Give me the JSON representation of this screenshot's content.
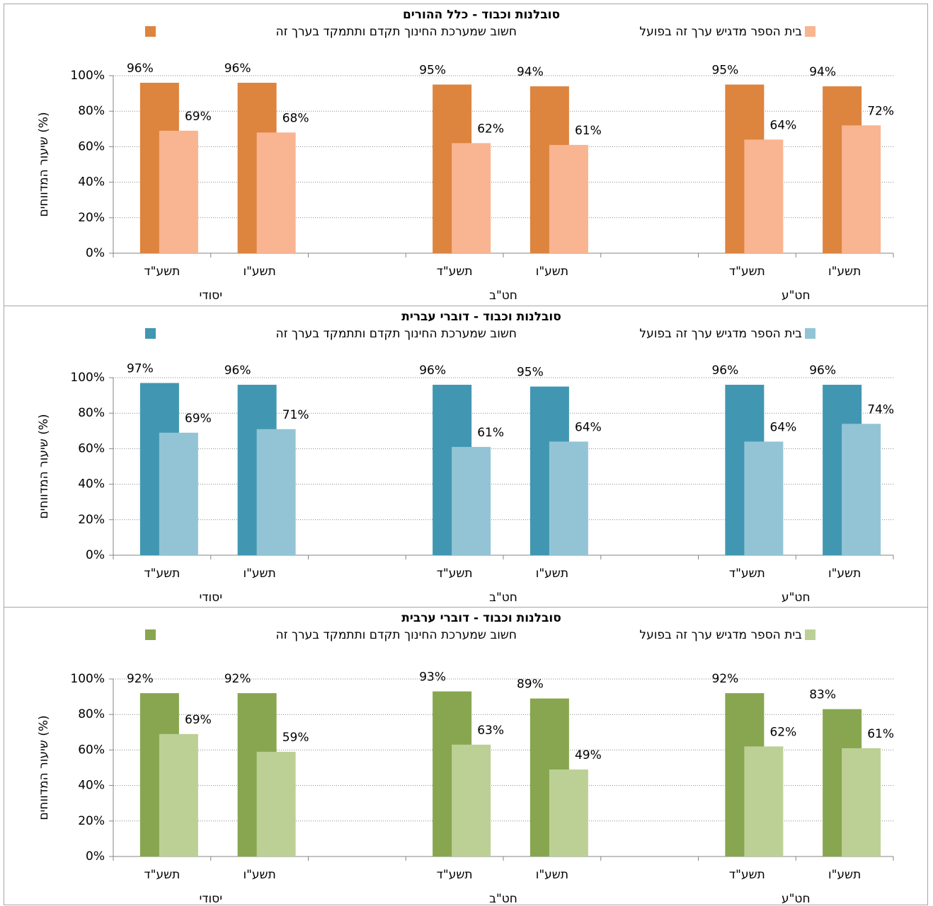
{
  "chart_data": [
    {
      "type": "bar",
      "title": "סובלנות וכבוד - כלל ההורים",
      "y_label": "שיעור המדווחים (%)",
      "categories": [
        "תשע\"ד",
        "תשע\"ו",
        null,
        "תשע\"ד",
        "תשע\"ו",
        null,
        "תשע\"ד",
        "תשע\"ו"
      ],
      "groups": [
        "יסודי",
        "חט\"ב",
        "חט\"ע"
      ],
      "series": [
        {
          "name": "חשוב שמערכת החינוך תקדם ותתמקד בערך זה",
          "color": "#dd843f",
          "values": [
            96,
            96,
            null,
            95,
            94,
            null,
            95,
            94
          ],
          "value_labels": [
            "96%",
            "96%",
            null,
            "95%",
            "94%",
            null,
            "95%",
            "94%"
          ]
        },
        {
          "name": "בית הספר מדגיש ערך זה בפועל",
          "color": "#f9b491",
          "values": [
            69,
            68,
            null,
            62,
            61,
            null,
            64,
            72
          ],
          "value_labels": [
            "69%",
            "68%",
            null,
            "62%",
            "61%",
            null,
            "64%",
            "72%"
          ]
        }
      ],
      "ylim": [
        0,
        100
      ],
      "yticks": [
        {
          "value": 0,
          "label": "0%"
        },
        {
          "value": 20,
          "label": "20%"
        },
        {
          "value": 40,
          "label": "40%"
        },
        {
          "value": 60,
          "label": "60%"
        },
        {
          "value": 80,
          "label": "80%"
        },
        {
          "value": 100,
          "label": "100%"
        }
      ],
      "grid": true
    },
    {
      "type": "bar",
      "title": "סובלנות וכבוד - דוברי עברית",
      "y_label": "שיעור המדווחים (%)",
      "categories": [
        "תשע\"ד",
        "תשע\"ו",
        null,
        "תשע\"ד",
        "תשע\"ו",
        null,
        "תשע\"ד",
        "תשע\"ו"
      ],
      "groups": [
        "יסודי",
        "חט\"ב",
        "חט\"ע"
      ],
      "series": [
        {
          "name": "חשוב שמערכת החינוך תקדם ותתמקד בערך זה",
          "color": "#4197b1",
          "values": [
            97,
            96,
            null,
            96,
            95,
            null,
            96,
            96
          ],
          "value_labels": [
            "97%",
            "96%",
            null,
            "96%",
            "95%",
            null,
            "96%",
            "96%"
          ]
        },
        {
          "name": "בית הספר מדגיש ערך זה בפועל",
          "color": "#93c4d6",
          "values": [
            69,
            71,
            null,
            61,
            64,
            null,
            64,
            74
          ],
          "value_labels": [
            "69%",
            "71%",
            null,
            "61%",
            "64%",
            null,
            "64%",
            "74%"
          ]
        }
      ],
      "ylim": [
        0,
        100
      ],
      "yticks": [
        {
          "value": 0,
          "label": "0%"
        },
        {
          "value": 20,
          "label": "20%"
        },
        {
          "value": 40,
          "label": "40%"
        },
        {
          "value": 60,
          "label": "60%"
        },
        {
          "value": 80,
          "label": "80%"
        },
        {
          "value": 100,
          "label": "100%"
        }
      ],
      "grid": true
    },
    {
      "type": "bar",
      "title": "סובלנות וכבוד - דוברי ערבית",
      "y_label": "שיעור המדווחים (%)",
      "categories": [
        "תשע\"ד",
        "תשע\"ו",
        null,
        "תשע\"ד",
        "תשע\"ו",
        null,
        "תשע\"ד",
        "תשע\"ו"
      ],
      "groups": [
        "יסודי",
        "חט\"ב",
        "חט\"ע"
      ],
      "series": [
        {
          "name": "חשוב שמערכת החינוך תקדם ותתמקד בערך זה",
          "color": "#87a64f",
          "values": [
            92,
            92,
            null,
            93,
            89,
            null,
            92,
            83
          ],
          "value_labels": [
            "92%",
            "92%",
            null,
            "93%",
            "89%",
            null,
            "92%",
            "83%"
          ]
        },
        {
          "name": "בית הספר מדגיש ערך זה בפועל",
          "color": "#bcd095",
          "values": [
            69,
            59,
            null,
            63,
            49,
            null,
            62,
            61
          ],
          "value_labels": [
            "69%",
            "59%",
            null,
            "63%",
            "49%",
            null,
            "62%",
            "61%"
          ]
        }
      ],
      "ylim": [
        0,
        100
      ],
      "yticks": [
        {
          "value": 0,
          "label": "0%"
        },
        {
          "value": 20,
          "label": "20%"
        },
        {
          "value": 40,
          "label": "40%"
        },
        {
          "value": 60,
          "label": "60%"
        },
        {
          "value": 80,
          "label": "80%"
        },
        {
          "value": 100,
          "label": "100%"
        }
      ],
      "grid": true
    }
  ]
}
